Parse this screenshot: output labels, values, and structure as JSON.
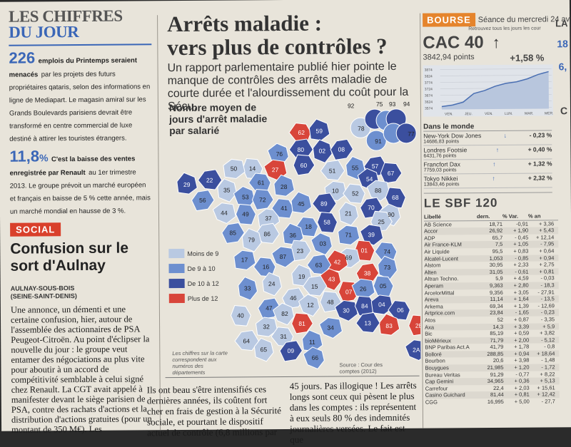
{
  "left": {
    "heading_line1": "LES CHIFFRES",
    "heading_line2": "DU JOUR",
    "fig1_number": "226",
    "fig1_lead": "emplois du Printemps seraient menacés",
    "fig1_text": "par les projets des futurs propriétaires qataris, selon des informations en ligne de Mediapart. Le magasin amiral sur les Grands Boulevards parisiens devrait être transformé en centre commercial de luxe destiné à attirer les touristes étrangers.",
    "fig2_number": "11,8",
    "fig2_unit": "%",
    "fig2_lead": "C'est la baisse des ventes enregistrée par Renault",
    "fig2_text": "au 1er trimestre 2013. Le groupe prévoit un marché européen et français en baisse de 5 % cette année, mais un marché mondial en hausse de 3 %.",
    "social_tag": "SOCIAL",
    "article_title": "Confusion sur le sort d'Aulnay",
    "dateline": "AULNAY-SOUS-BOIS (SEINE-SAINT-DENIS)",
    "body": "Une annonce, un démenti et une certaine confusion, hier, autour de l'assemblée des actionnaires de PSA Peugeot-Citroën. Au point d'éclipser la nouvelle du jour : le groupe veut entamer des négociations au plus vite pour aboutir à un accord de compétitivité semblable à celui signé chez Renault. La CGT avait appelé à manifester devant le siège parisien de PSA, contre des rachats d'actions et la distribution d'actions gratuites (pour un montant de 350 M€). Les"
  },
  "center": {
    "title_line1": "Arrêts maladie :",
    "title_line2": "vers plus de contrôles ?",
    "deck": "Un rapport parlementaire publié hier pointe le manque de contrôles des arrêts maladie de courte durée et l'alourdissement du coût pour la Sécu.",
    "map_title": "Nombre moyen de jours d'arrêt maladie par salarié",
    "legend": [
      {
        "label": "Moins de 9",
        "color": "#b9c9e2"
      },
      {
        "label": "De 9 à 10",
        "color": "#6d8fcf"
      },
      {
        "label": "De 10 à 12",
        "color": "#3b4f9e"
      },
      {
        "label": "Plus de 12",
        "color": "#d8453a"
      }
    ],
    "footnote": "Les chiffres sur la carte correspondent aux numéros des départements",
    "source": "Source : Cour des comptes (2012)",
    "idf_labels": [
      "92",
      "75",
      "93",
      "94",
      "78",
      "91",
      "77"
    ],
    "departments": [
      {
        "num": "62",
        "cls": 3
      },
      {
        "num": "59",
        "cls": 2
      },
      {
        "num": "80",
        "cls": 2
      },
      {
        "num": "02",
        "cls": 2
      },
      {
        "num": "08",
        "cls": 2
      },
      {
        "num": "76",
        "cls": 1
      },
      {
        "num": "60",
        "cls": 2
      },
      {
        "num": "27",
        "cls": 3
      },
      {
        "num": "14",
        "cls": 0
      },
      {
        "num": "50",
        "cls": 0
      },
      {
        "num": "61",
        "cls": 1
      },
      {
        "num": "28",
        "cls": 1
      },
      {
        "num": "51",
        "cls": 0
      },
      {
        "num": "55",
        "cls": 1
      },
      {
        "num": "57",
        "cls": 2
      },
      {
        "num": "54",
        "cls": 2
      },
      {
        "num": "67",
        "cls": 2
      },
      {
        "num": "88",
        "cls": 0
      },
      {
        "num": "68",
        "cls": 2
      },
      {
        "num": "10",
        "cls": 0
      },
      {
        "num": "52",
        "cls": 0
      },
      {
        "num": "29",
        "cls": 2
      },
      {
        "num": "22",
        "cls": 2
      },
      {
        "num": "35",
        "cls": 0
      },
      {
        "num": "56",
        "cls": 1
      },
      {
        "num": "53",
        "cls": 1
      },
      {
        "num": "72",
        "cls": 1
      },
      {
        "num": "44",
        "cls": 0
      },
      {
        "num": "49",
        "cls": 1
      },
      {
        "num": "37",
        "cls": 0
      },
      {
        "num": "41",
        "cls": 1
      },
      {
        "num": "45",
        "cls": 1
      },
      {
        "num": "89",
        "cls": 2
      },
      {
        "num": "21",
        "cls": 0
      },
      {
        "num": "70",
        "cls": 2
      },
      {
        "num": "90",
        "cls": 0
      },
      {
        "num": "25",
        "cls": 0
      },
      {
        "num": "39",
        "cls": 2
      },
      {
        "num": "58",
        "cls": 2
      },
      {
        "num": "71",
        "cls": 1
      },
      {
        "num": "18",
        "cls": 1
      },
      {
        "num": "36",
        "cls": 1
      },
      {
        "num": "86",
        "cls": 0
      },
      {
        "num": "79",
        "cls": 0
      },
      {
        "num": "85",
        "cls": 1
      },
      {
        "num": "03",
        "cls": 1
      },
      {
        "num": "23",
        "cls": 0
      },
      {
        "num": "87",
        "cls": 1
      },
      {
        "num": "01",
        "cls": 3
      },
      {
        "num": "69",
        "cls": 0
      },
      {
        "num": "74",
        "cls": 1
      },
      {
        "num": "42",
        "cls": 3
      },
      {
        "num": "63",
        "cls": 1
      },
      {
        "num": "73",
        "cls": 1
      },
      {
        "num": "38",
        "cls": 3
      },
      {
        "num": "43",
        "cls": 3
      },
      {
        "num": "07",
        "cls": 3
      },
      {
        "num": "26",
        "cls": 1
      },
      {
        "num": "05",
        "cls": 1
      },
      {
        "num": "17",
        "cls": 1
      },
      {
        "num": "16",
        "cls": 1
      },
      {
        "num": "19",
        "cls": 0
      },
      {
        "num": "15",
        "cls": 0
      },
      {
        "num": "24",
        "cls": 0
      },
      {
        "num": "46",
        "cls": 0
      },
      {
        "num": "12",
        "cls": 0
      },
      {
        "num": "48",
        "cls": 0
      },
      {
        "num": "30",
        "cls": 2
      },
      {
        "num": "84",
        "cls": 2
      },
      {
        "num": "04",
        "cls": 2
      },
      {
        "num": "06",
        "cls": 2
      },
      {
        "num": "83",
        "cls": 3
      },
      {
        "num": "13",
        "cls": 2
      },
      {
        "num": "33",
        "cls": 1
      },
      {
        "num": "47",
        "cls": 1
      },
      {
        "num": "82",
        "cls": 0
      },
      {
        "num": "81",
        "cls": 3
      },
      {
        "num": "34",
        "cls": 1
      },
      {
        "num": "40",
        "cls": 0
      },
      {
        "num": "32",
        "cls": 0
      },
      {
        "num": "31",
        "cls": 0
      },
      {
        "num": "11",
        "cls": 1
      },
      {
        "num": "64",
        "cls": 0
      },
      {
        "num": "65",
        "cls": 0
      },
      {
        "num": "09",
        "cls": 2
      },
      {
        "num": "66",
        "cls": 1
      },
      {
        "num": "2B",
        "cls": 3
      },
      {
        "num": "2A",
        "cls": 2
      }
    ],
    "body_left": "Ils ont beau s'être intensifiés ces dernières années, ils coûtent fort cher en frais de gestion à la Sécurité sociale, et pourtant le dispositif actuel de contrôle (6,8 millions par",
    "body_right": "45 jours. Pas illogique ! Les arrêts longs sont ceux qui pèsent le plus dans les comptes : ils représentent à eux seuls 80 % des indemnités journalières versées. Le fait est que"
  },
  "right": {
    "bourse_tag": "BOURSE",
    "session": "Séance du mercredi 24 av",
    "session_sub": "Retrouvez tous les jours les cour",
    "cac_title": "CAC 40",
    "cac_points": "3842,94 points",
    "cac_change": "+1,58 %",
    "chart_yticks": [
      "3874",
      "3824",
      "3774",
      "3724",
      "3674",
      "3624",
      "3574"
    ],
    "chart_xticks": [
      "VEN.",
      "JEU.",
      "VEN.",
      "LUN.",
      "MAR.",
      "MER."
    ],
    "world_title": "Dans le monde",
    "world": [
      {
        "name": "New-York Dow Jones",
        "points": "14686,83 points",
        "dir": "↓",
        "change": "- 0,23 %"
      },
      {
        "name": "Londres Footsie",
        "points": "6431,76 points",
        "dir": "↑",
        "change": "+ 0,40 %"
      },
      {
        "name": "Francfort Dax",
        "points": "7759,03 points",
        "dir": "↑",
        "change": "+ 1,32 %"
      },
      {
        "name": "Tokyo Nikkei",
        "points": "13843,46 points",
        "dir": "↑",
        "change": "+ 2,32 %"
      }
    ],
    "sbf_title": "LE SBF 120",
    "sbf_headers": [
      "Libellé",
      "dern.",
      "% Var.",
      "% an"
    ],
    "sbf_rows": [
      [
        "AB Science",
        "18,71",
        "-0,91",
        "+ 3,36"
      ],
      [
        "Accor",
        "26,92",
        "+ 1,90",
        "+ 5,43"
      ],
      [
        "ADP",
        "65,7",
        "- 0,45",
        "+ 12,14"
      ],
      [
        "Air France-KLM",
        "7,5",
        "+ 1,05",
        "- 7,95"
      ],
      [
        "Air Liquide",
        "95,5",
        "+ 0,83",
        "+ 0,64"
      ],
      [
        "Alcatel-Lucent",
        "1,053",
        "- 0,85",
        "+ 0,94"
      ],
      [
        "Alstom",
        "30,95",
        "+ 2,33",
        "+ 2,75"
      ],
      [
        "Alten",
        "31,05",
        "- 0,61",
        "+ 0,81"
      ],
      [
        "Altran Techno.",
        "5,9",
        "+ 4,59",
        "- 0,03"
      ],
      [
        "Aperam",
        "9,363",
        "+ 2,80",
        "- 18,3"
      ],
      [
        "ArcelorMittal",
        "9,356",
        "+ 3,05",
        "- 27,91"
      ],
      [
        "Areva",
        "11,14",
        "+ 1,64",
        "- 13,5"
      ],
      [
        "Arkema",
        "69,34",
        "+ 1,39",
        "- 12,69"
      ],
      [
        "Artprice.com",
        "23,84",
        "- 1,65",
        "- 0,23"
      ],
      [
        "Atos",
        "52",
        "+ 0,87",
        "- 3,35"
      ],
      [
        "Axa",
        "14,3",
        "+ 3,39",
        "+ 5,9"
      ],
      [
        "Bic",
        "85,19",
        "+ 0,59",
        "+ 3,82"
      ],
      [
        "bioMérieux",
        "71,79",
        "+ 2,00",
        "- 5,12"
      ],
      [
        "BNP Paribas Act.A",
        "41,79",
        "+ 1,78",
        "- 0,8"
      ],
      [
        "Bolloré",
        "288,85",
        "+ 0,94",
        "+ 18,64"
      ],
      [
        "Bourbon",
        "20,6",
        "+ 3,98",
        "- 1,48"
      ],
      [
        "Bouygues",
        "21,985",
        "+ 1,20",
        "- 1,72"
      ],
      [
        "Bureau Veritas",
        "91,29",
        "- 0,77",
        "+ 8,22"
      ],
      [
        "Cap Gemini",
        "34,965",
        "+ 0,36",
        "+ 5,13"
      ],
      [
        "Carrefour",
        "22,4",
        "+ 2,03",
        "+ 15,61"
      ],
      [
        "Casino Guichard",
        "81,44",
        "+ 0,81",
        "+ 12,42"
      ],
      [
        "CGG",
        "16,995",
        "+ 5,00",
        "- 27,7"
      ]
    ],
    "edge1": "LA",
    "edge2": "18",
    "edge3": "6,",
    "edge4": "C"
  }
}
